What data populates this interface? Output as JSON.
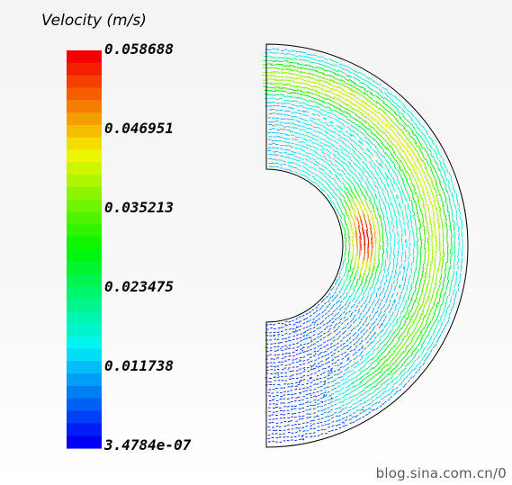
{
  "legend": {
    "title": "Velocity (m/s)",
    "ticks": [
      "0.058688",
      "0.046951",
      "0.035213",
      "0.023475",
      "0.011738",
      "3.4784e-07"
    ],
    "max": 0.058688,
    "min": 3.4784e-07,
    "bands": 32
  },
  "watermark": "blog.sina.com.cn/0",
  "colors": {
    "border": "#000000",
    "low": "#0000ff",
    "high": "#ff0000"
  }
}
